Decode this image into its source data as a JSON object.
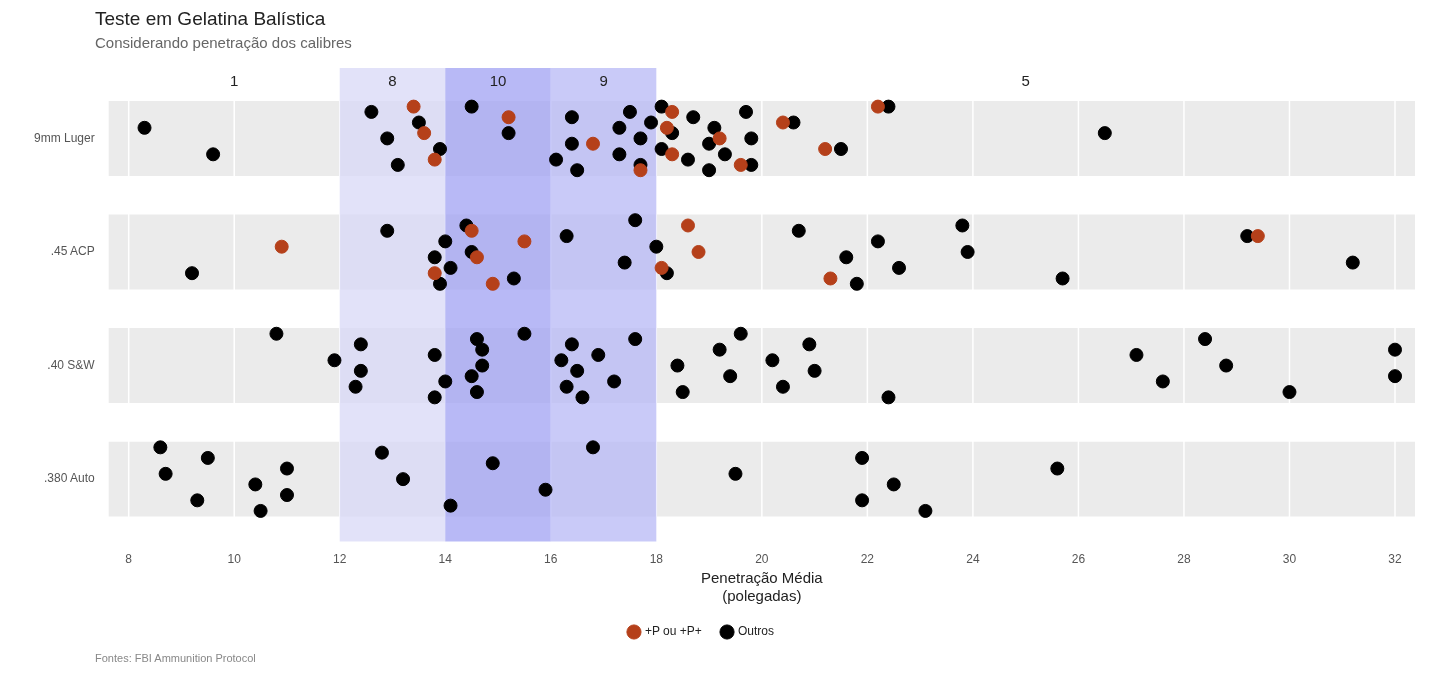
{
  "chart_data": {
    "type": "scatter",
    "orientation": "horizontal",
    "title": "Teste em Gelatina Balística",
    "subtitle": "Considerando penetração dos calibres",
    "xlabel": "Penetração Média\n(polegadas)",
    "categories": [
      "9mm Luger",
      ".45 ACP",
      ".40 S&W",
      ".380 Auto"
    ],
    "xlim": [
      8,
      32
    ],
    "xticks": [
      8,
      10,
      12,
      14,
      16,
      18,
      20,
      22,
      24,
      26,
      28,
      30,
      32
    ],
    "grid": "x",
    "legend": "bottom",
    "marker": "circle",
    "bands": [
      {
        "axis": "y",
        "from": "9mm Luger",
        "to": "9mm Luger",
        "color": "#ebebeb"
      },
      {
        "axis": "y",
        "from": ".45 ACP",
        "to": ".45 ACP",
        "color": "#ebebeb"
      },
      {
        "axis": "y",
        "from": ".40 S&W",
        "to": ".40 S&W",
        "color": "#ebebeb"
      },
      {
        "axis": "y",
        "from": ".380 Auto",
        "to": ".380 Auto",
        "color": "#ebebeb"
      },
      {
        "axis": "x",
        "from": 12,
        "to": 14,
        "label": "8",
        "color": "#d7d7f7"
      },
      {
        "axis": "x",
        "from": 14,
        "to": 16,
        "label": "10",
        "color": "#9c9ef3"
      },
      {
        "axis": "x",
        "from": 16,
        "to": 18,
        "label": "9",
        "color": "#b4b5f5"
      }
    ],
    "annotations": [
      "1",
      "5",
      "Fontes: FBI Ammunition Protocol"
    ],
    "series": [
      {
        "name": "+P ou +P+",
        "color": "#b5401a",
        "x": [
          "9mm Luger",
          "9mm Luger",
          "9mm Luger",
          "9mm Luger",
          "9mm Luger",
          "9mm Luger",
          "9mm Luger",
          "9mm Luger",
          "9mm Luger",
          "9mm Luger",
          "9mm Luger",
          "9mm Luger",
          "9mm Luger",
          "9mm Luger",
          ".45 ACP",
          ".45 ACP",
          ".45 ACP",
          ".45 ACP",
          ".45 ACP",
          ".45 ACP",
          ".45 ACP",
          ".45 ACP",
          ".45 ACP",
          ".45 ACP",
          ".45 ACP"
        ],
        "values": [
          13.4,
          13.6,
          13.8,
          15.2,
          16.8,
          17.7,
          18.2,
          18.3,
          18.3,
          19.2,
          19.6,
          20.4,
          21.2,
          22.2,
          10.9,
          13.8,
          14.5,
          14.6,
          14.9,
          15.5,
          18.1,
          18.6,
          18.8,
          21.3,
          29.4
        ]
      },
      {
        "name": "Outros",
        "color": "#000000",
        "x": [
          "9mm Luger",
          "9mm Luger",
          "9mm Luger",
          "9mm Luger",
          "9mm Luger",
          "9mm Luger",
          "9mm Luger",
          "9mm Luger",
          "9mm Luger",
          "9mm Luger",
          "9mm Luger",
          "9mm Luger",
          "9mm Luger",
          "9mm Luger",
          "9mm Luger",
          "9mm Luger",
          "9mm Luger",
          "9mm Luger",
          "9mm Luger",
          "9mm Luger",
          "9mm Luger",
          "9mm Luger",
          "9mm Luger",
          "9mm Luger",
          "9mm Luger",
          "9mm Luger",
          "9mm Luger",
          "9mm Luger",
          "9mm Luger",
          "9mm Luger",
          "9mm Luger",
          "9mm Luger",
          "9mm Luger",
          "9mm Luger",
          "9mm Luger",
          ".45 ACP",
          ".45 ACP",
          ".45 ACP",
          ".45 ACP",
          ".45 ACP",
          ".45 ACP",
          ".45 ACP",
          ".45 ACP",
          ".45 ACP",
          ".45 ACP",
          ".45 ACP",
          ".45 ACP",
          ".45 ACP",
          ".45 ACP",
          ".45 ACP",
          ".45 ACP",
          ".45 ACP",
          ".45 ACP",
          ".45 ACP",
          ".45 ACP",
          ".45 ACP",
          ".45 ACP",
          ".45 ACP",
          ".45 ACP",
          ".40 S&W",
          ".40 S&W",
          ".40 S&W",
          ".40 S&W",
          ".40 S&W",
          ".40 S&W",
          ".40 S&W",
          ".40 S&W",
          ".40 S&W",
          ".40 S&W",
          ".40 S&W",
          ".40 S&W",
          ".40 S&W",
          ".40 S&W",
          ".40 S&W",
          ".40 S&W",
          ".40 S&W",
          ".40 S&W",
          ".40 S&W",
          ".40 S&W",
          ".40 S&W",
          ".40 S&W",
          ".40 S&W",
          ".40 S&W",
          ".40 S&W",
          ".40 S&W",
          ".40 S&W",
          ".40 S&W",
          ".40 S&W",
          ".40 S&W",
          ".40 S&W",
          ".40 S&W",
          ".40 S&W",
          ".40 S&W",
          ".40 S&W",
          ".40 S&W",
          ".40 S&W",
          ".40 S&W",
          ".40 S&W",
          ".380 Auto",
          ".380 Auto",
          ".380 Auto",
          ".380 Auto",
          ".380 Auto",
          ".380 Auto",
          ".380 Auto",
          ".380 Auto",
          ".380 Auto",
          ".380 Auto",
          ".380 Auto",
          ".380 Auto",
          ".380 Auto",
          ".380 Auto",
          ".380 Auto",
          ".380 Auto",
          ".380 Auto",
          ".380 Auto",
          ".380 Auto",
          ".380 Auto"
        ],
        "values": [
          8.3,
          9.6,
          12.6,
          12.9,
          13.1,
          13.5,
          13.9,
          14.5,
          15.2,
          16.1,
          16.4,
          16.4,
          16.5,
          17.3,
          17.3,
          17.5,
          17.7,
          17.7,
          17.9,
          18.1,
          18.1,
          18.3,
          18.6,
          18.7,
          19.0,
          19.0,
          19.1,
          19.3,
          19.7,
          19.8,
          19.8,
          20.6,
          21.5,
          22.4,
          26.5,
          9.2,
          12.9,
          13.8,
          13.9,
          14.0,
          14.1,
          14.4,
          14.5,
          15.3,
          16.3,
          17.4,
          17.6,
          18.0,
          18.2,
          20.7,
          21.6,
          21.8,
          22.2,
          22.6,
          23.8,
          23.9,
          25.7,
          29.2,
          31.2,
          10.8,
          11.9,
          12.3,
          12.4,
          12.4,
          13.8,
          13.8,
          14.0,
          14.6,
          14.7,
          14.6,
          14.7,
          14.5,
          15.5,
          16.2,
          16.3,
          16.4,
          16.5,
          16.6,
          16.9,
          17.2,
          17.6,
          18.4,
          18.5,
          19.2,
          19.4,
          19.6,
          20.2,
          20.4,
          20.9,
          21.0,
          22.4,
          27.1,
          27.6,
          28.4,
          28.8,
          30.0,
          32.0,
          32.0,
          8.6,
          8.7,
          9.3,
          9.5,
          10.4,
          10.5,
          11.0,
          11.0,
          12.8,
          13.2,
          14.1,
          14.9,
          15.9,
          16.8,
          19.5,
          21.9,
          21.9,
          22.5,
          23.1,
          25.6
        ]
      }
    ]
  }
}
